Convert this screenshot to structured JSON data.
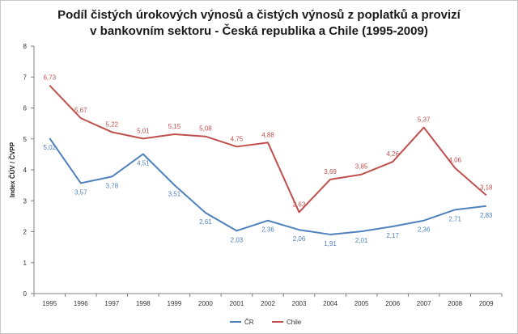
{
  "chart_data": {
    "type": "line",
    "title_line1": "Podíl čistých úrokových výnosů a čistých výnosů z poplatků a provizí",
    "title_line2": "v bankovním sektoru - Česká republika a Chile (1995-2009)",
    "ylabel": "Index ČÚV / ČVPP",
    "xlabel": "",
    "ylim": [
      0,
      8
    ],
    "yticks": [
      "0",
      "1",
      "2",
      "3",
      "4",
      "5",
      "6",
      "7",
      "8"
    ],
    "categories": [
      "1995",
      "1996",
      "1997",
      "1998",
      "1999",
      "2000",
      "2001",
      "2002",
      "2003",
      "2004",
      "2005",
      "2006",
      "2007",
      "2008",
      "2009"
    ],
    "series": [
      {
        "name": "ČR",
        "color": "#4f81bd",
        "values": [
          5.02,
          3.57,
          3.78,
          4.51,
          3.51,
          2.61,
          2.03,
          2.36,
          2.06,
          1.91,
          2.01,
          2.17,
          2.36,
          2.71,
          2.83
        ],
        "labels": [
          "5,02",
          "3,57",
          "3,78",
          "4,51",
          "3,51",
          "2,61",
          "2,03",
          "2,36",
          "2,06",
          "1,91",
          "2,01",
          "2,17",
          "2,36",
          "2,71",
          "2,83"
        ]
      },
      {
        "name": "Chile",
        "color": "#c0504d",
        "values": [
          6.73,
          5.67,
          5.22,
          5.01,
          5.15,
          5.08,
          4.75,
          4.88,
          2.63,
          3.69,
          3.85,
          4.26,
          5.37,
          4.06,
          3.18
        ],
        "labels": [
          "6,73",
          "5,67",
          "5,22",
          "5,01",
          "5,15",
          "5,08",
          "4,75",
          "4,88",
          "2,63",
          "3,69",
          "3,85",
          "4,26",
          "5,37",
          "4,06",
          "3,18"
        ]
      }
    ],
    "grid": false,
    "legend": "bottom"
  }
}
